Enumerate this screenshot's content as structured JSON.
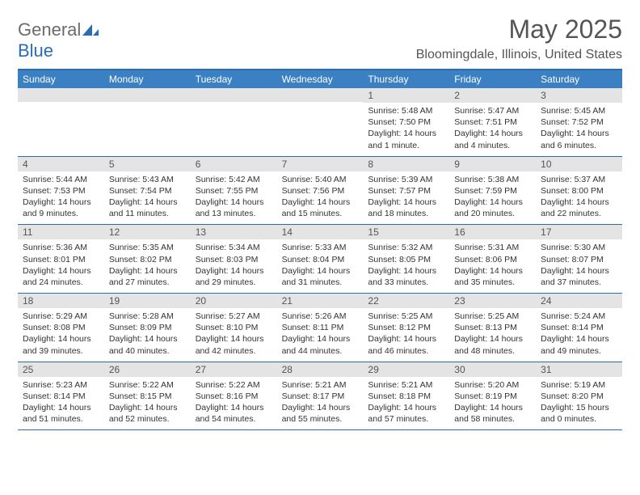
{
  "brand": {
    "part1": "General",
    "part2": "Blue"
  },
  "title": "May 2025",
  "location": "Bloomingdale, Illinois, United States",
  "colors": {
    "header_bar": "#3a80c2",
    "rule": "#2a6db0",
    "daynum_bg": "#e4e4e4",
    "text": "#333333"
  },
  "days_of_week": [
    "Sunday",
    "Monday",
    "Tuesday",
    "Wednesday",
    "Thursday",
    "Friday",
    "Saturday"
  ],
  "weeks": [
    [
      {
        "n": "",
        "sunrise": "",
        "sunset": "",
        "daylight": ""
      },
      {
        "n": "",
        "sunrise": "",
        "sunset": "",
        "daylight": ""
      },
      {
        "n": "",
        "sunrise": "",
        "sunset": "",
        "daylight": ""
      },
      {
        "n": "",
        "sunrise": "",
        "sunset": "",
        "daylight": ""
      },
      {
        "n": "1",
        "sunrise": "Sunrise: 5:48 AM",
        "sunset": "Sunset: 7:50 PM",
        "daylight": "Daylight: 14 hours and 1 minute."
      },
      {
        "n": "2",
        "sunrise": "Sunrise: 5:47 AM",
        "sunset": "Sunset: 7:51 PM",
        "daylight": "Daylight: 14 hours and 4 minutes."
      },
      {
        "n": "3",
        "sunrise": "Sunrise: 5:45 AM",
        "sunset": "Sunset: 7:52 PM",
        "daylight": "Daylight: 14 hours and 6 minutes."
      }
    ],
    [
      {
        "n": "4",
        "sunrise": "Sunrise: 5:44 AM",
        "sunset": "Sunset: 7:53 PM",
        "daylight": "Daylight: 14 hours and 9 minutes."
      },
      {
        "n": "5",
        "sunrise": "Sunrise: 5:43 AM",
        "sunset": "Sunset: 7:54 PM",
        "daylight": "Daylight: 14 hours and 11 minutes."
      },
      {
        "n": "6",
        "sunrise": "Sunrise: 5:42 AM",
        "sunset": "Sunset: 7:55 PM",
        "daylight": "Daylight: 14 hours and 13 minutes."
      },
      {
        "n": "7",
        "sunrise": "Sunrise: 5:40 AM",
        "sunset": "Sunset: 7:56 PM",
        "daylight": "Daylight: 14 hours and 15 minutes."
      },
      {
        "n": "8",
        "sunrise": "Sunrise: 5:39 AM",
        "sunset": "Sunset: 7:57 PM",
        "daylight": "Daylight: 14 hours and 18 minutes."
      },
      {
        "n": "9",
        "sunrise": "Sunrise: 5:38 AM",
        "sunset": "Sunset: 7:59 PM",
        "daylight": "Daylight: 14 hours and 20 minutes."
      },
      {
        "n": "10",
        "sunrise": "Sunrise: 5:37 AM",
        "sunset": "Sunset: 8:00 PM",
        "daylight": "Daylight: 14 hours and 22 minutes."
      }
    ],
    [
      {
        "n": "11",
        "sunrise": "Sunrise: 5:36 AM",
        "sunset": "Sunset: 8:01 PM",
        "daylight": "Daylight: 14 hours and 24 minutes."
      },
      {
        "n": "12",
        "sunrise": "Sunrise: 5:35 AM",
        "sunset": "Sunset: 8:02 PM",
        "daylight": "Daylight: 14 hours and 27 minutes."
      },
      {
        "n": "13",
        "sunrise": "Sunrise: 5:34 AM",
        "sunset": "Sunset: 8:03 PM",
        "daylight": "Daylight: 14 hours and 29 minutes."
      },
      {
        "n": "14",
        "sunrise": "Sunrise: 5:33 AM",
        "sunset": "Sunset: 8:04 PM",
        "daylight": "Daylight: 14 hours and 31 minutes."
      },
      {
        "n": "15",
        "sunrise": "Sunrise: 5:32 AM",
        "sunset": "Sunset: 8:05 PM",
        "daylight": "Daylight: 14 hours and 33 minutes."
      },
      {
        "n": "16",
        "sunrise": "Sunrise: 5:31 AM",
        "sunset": "Sunset: 8:06 PM",
        "daylight": "Daylight: 14 hours and 35 minutes."
      },
      {
        "n": "17",
        "sunrise": "Sunrise: 5:30 AM",
        "sunset": "Sunset: 8:07 PM",
        "daylight": "Daylight: 14 hours and 37 minutes."
      }
    ],
    [
      {
        "n": "18",
        "sunrise": "Sunrise: 5:29 AM",
        "sunset": "Sunset: 8:08 PM",
        "daylight": "Daylight: 14 hours and 39 minutes."
      },
      {
        "n": "19",
        "sunrise": "Sunrise: 5:28 AM",
        "sunset": "Sunset: 8:09 PM",
        "daylight": "Daylight: 14 hours and 40 minutes."
      },
      {
        "n": "20",
        "sunrise": "Sunrise: 5:27 AM",
        "sunset": "Sunset: 8:10 PM",
        "daylight": "Daylight: 14 hours and 42 minutes."
      },
      {
        "n": "21",
        "sunrise": "Sunrise: 5:26 AM",
        "sunset": "Sunset: 8:11 PM",
        "daylight": "Daylight: 14 hours and 44 minutes."
      },
      {
        "n": "22",
        "sunrise": "Sunrise: 5:25 AM",
        "sunset": "Sunset: 8:12 PM",
        "daylight": "Daylight: 14 hours and 46 minutes."
      },
      {
        "n": "23",
        "sunrise": "Sunrise: 5:25 AM",
        "sunset": "Sunset: 8:13 PM",
        "daylight": "Daylight: 14 hours and 48 minutes."
      },
      {
        "n": "24",
        "sunrise": "Sunrise: 5:24 AM",
        "sunset": "Sunset: 8:14 PM",
        "daylight": "Daylight: 14 hours and 49 minutes."
      }
    ],
    [
      {
        "n": "25",
        "sunrise": "Sunrise: 5:23 AM",
        "sunset": "Sunset: 8:14 PM",
        "daylight": "Daylight: 14 hours and 51 minutes."
      },
      {
        "n": "26",
        "sunrise": "Sunrise: 5:22 AM",
        "sunset": "Sunset: 8:15 PM",
        "daylight": "Daylight: 14 hours and 52 minutes."
      },
      {
        "n": "27",
        "sunrise": "Sunrise: 5:22 AM",
        "sunset": "Sunset: 8:16 PM",
        "daylight": "Daylight: 14 hours and 54 minutes."
      },
      {
        "n": "28",
        "sunrise": "Sunrise: 5:21 AM",
        "sunset": "Sunset: 8:17 PM",
        "daylight": "Daylight: 14 hours and 55 minutes."
      },
      {
        "n": "29",
        "sunrise": "Sunrise: 5:21 AM",
        "sunset": "Sunset: 8:18 PM",
        "daylight": "Daylight: 14 hours and 57 minutes."
      },
      {
        "n": "30",
        "sunrise": "Sunrise: 5:20 AM",
        "sunset": "Sunset: 8:19 PM",
        "daylight": "Daylight: 14 hours and 58 minutes."
      },
      {
        "n": "31",
        "sunrise": "Sunrise: 5:19 AM",
        "sunset": "Sunset: 8:20 PM",
        "daylight": "Daylight: 15 hours and 0 minutes."
      }
    ]
  ]
}
